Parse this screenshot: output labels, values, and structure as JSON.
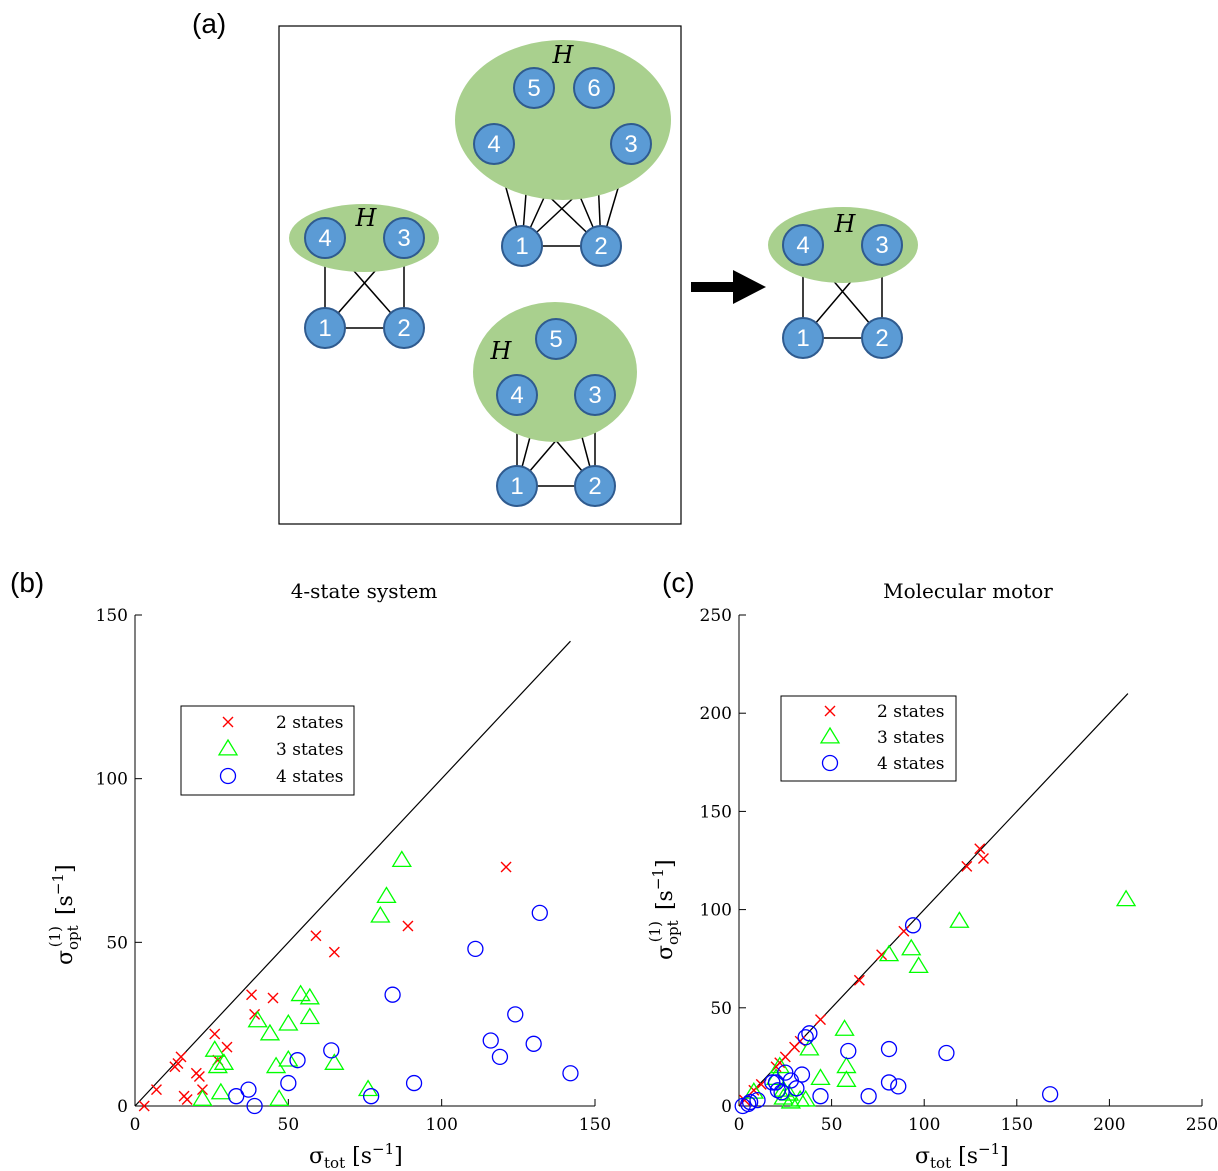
{
  "panel_a": {
    "label": "(a)",
    "group_label": "H",
    "graphs": [
      {
        "nodes": [
          "1",
          "2",
          "3",
          "4"
        ]
      },
      {
        "nodes": [
          "1",
          "2",
          "3",
          "4",
          "5",
          "6"
        ]
      },
      {
        "nodes": [
          "1",
          "2",
          "3",
          "4",
          "5"
        ]
      },
      {
        "nodes": [
          "1",
          "2",
          "3",
          "4"
        ]
      }
    ],
    "colors": {
      "node": "#5b9bd5",
      "node_stroke": "#2f5b8f",
      "group": "#a9d08e"
    }
  },
  "chart_data": [
    {
      "panel_label": "(b)",
      "type": "scatter",
      "title": "4-state system",
      "xlabel": "σ_tot [s^-1]",
      "ylabel": "σ_opt^(1) [s^-1]",
      "xlim": [
        0,
        150
      ],
      "ylim": [
        0,
        150
      ],
      "xticks": [
        "0",
        "50",
        "100",
        "150"
      ],
      "yticks": [
        "0",
        "50",
        "100",
        "150"
      ],
      "reference_line": {
        "from": [
          0,
          0
        ],
        "to": [
          142,
          142
        ]
      },
      "legend_position": "upper-left",
      "series": [
        {
          "name": "2 states",
          "marker": "x",
          "color": "#ff0000",
          "points": [
            [
              3,
              0
            ],
            [
              7,
              5
            ],
            [
              13,
              12
            ],
            [
              14,
              13
            ],
            [
              15,
              15
            ],
            [
              16,
              3
            ],
            [
              17,
              2
            ],
            [
              20,
              10
            ],
            [
              21,
              9
            ],
            [
              22,
              5
            ],
            [
              26,
              22
            ],
            [
              27,
              14
            ],
            [
              30,
              18
            ],
            [
              38,
              34
            ],
            [
              39,
              28
            ],
            [
              45,
              33
            ],
            [
              59,
              52
            ],
            [
              65,
              47
            ],
            [
              89,
              55
            ],
            [
              121,
              73
            ]
          ]
        },
        {
          "name": "3 states",
          "marker": "triangle",
          "color": "#00ff00",
          "points": [
            [
              22,
              2
            ],
            [
              26,
              17
            ],
            [
              27,
              12
            ],
            [
              28,
              4
            ],
            [
              29,
              13
            ],
            [
              40,
              26
            ],
            [
              44,
              22
            ],
            [
              46,
              12
            ],
            [
              47,
              2
            ],
            [
              50,
              25
            ],
            [
              50,
              14
            ],
            [
              54,
              34
            ],
            [
              57,
              33
            ],
            [
              57,
              27
            ],
            [
              65,
              13
            ],
            [
              76,
              5
            ],
            [
              80,
              58
            ],
            [
              82,
              64
            ],
            [
              87,
              75
            ]
          ]
        },
        {
          "name": "4 states",
          "marker": "circle",
          "color": "#0000ff",
          "points": [
            [
              33,
              3
            ],
            [
              37,
              5
            ],
            [
              39,
              0
            ],
            [
              50,
              7
            ],
            [
              53,
              14
            ],
            [
              64,
              17
            ],
            [
              77,
              3
            ],
            [
              84,
              34
            ],
            [
              91,
              7
            ],
            [
              111,
              48
            ],
            [
              116,
              20
            ],
            [
              119,
              15
            ],
            [
              124,
              28
            ],
            [
              130,
              19
            ],
            [
              132,
              59
            ],
            [
              142,
              10
            ]
          ]
        }
      ]
    },
    {
      "panel_label": "(c)",
      "type": "scatter",
      "title": "Molecular motor",
      "xlabel": "σ_tot [s^-1]",
      "ylabel": "σ_opt^(1) [s^-1]",
      "xlim": [
        0,
        250
      ],
      "ylim": [
        0,
        250
      ],
      "xticks": [
        "0",
        "50",
        "100",
        "150",
        "200",
        "250"
      ],
      "yticks": [
        "0",
        "50",
        "100",
        "150",
        "200",
        "250"
      ],
      "reference_line": {
        "from": [
          0,
          0
        ],
        "to": [
          210,
          210
        ]
      },
      "legend_position": "upper-left",
      "series": [
        {
          "name": "2 states",
          "marker": "x",
          "color": "#ff0000",
          "points": [
            [
              3,
              3
            ],
            [
              8,
              8
            ],
            [
              12,
              11
            ],
            [
              20,
              20
            ],
            [
              22,
              22
            ],
            [
              25,
              25
            ],
            [
              30,
              30
            ],
            [
              33,
              33
            ],
            [
              44,
              44
            ],
            [
              65,
              64
            ],
            [
              77,
              77
            ],
            [
              89,
              89
            ],
            [
              123,
              122
            ],
            [
              130,
              131
            ],
            [
              132,
              126
            ]
          ]
        },
        {
          "name": "3 states",
          "marker": "triangle",
          "color": "#00ff00",
          "points": [
            [
              8,
              7
            ],
            [
              20,
              14
            ],
            [
              22,
              20
            ],
            [
              24,
              8
            ],
            [
              24,
              4
            ],
            [
              27,
              6
            ],
            [
              28,
              2
            ],
            [
              33,
              3
            ],
            [
              36,
              3
            ],
            [
              38,
              29
            ],
            [
              44,
              14
            ],
            [
              57,
              39
            ],
            [
              58,
              20
            ],
            [
              58,
              13
            ],
            [
              81,
              77
            ],
            [
              93,
              80
            ],
            [
              97,
              71
            ],
            [
              119,
              94
            ],
            [
              209,
              105
            ]
          ]
        },
        {
          "name": "4 states",
          "marker": "circle",
          "color": "#0000ff",
          "points": [
            [
              2,
              0
            ],
            [
              5,
              1
            ],
            [
              6,
              2
            ],
            [
              10,
              3
            ],
            [
              18,
              12
            ],
            [
              20,
              12
            ],
            [
              21,
              8
            ],
            [
              23,
              7
            ],
            [
              25,
              17
            ],
            [
              28,
              13
            ],
            [
              31,
              9
            ],
            [
              34,
              16
            ],
            [
              36,
              35
            ],
            [
              38,
              37
            ],
            [
              44,
              5
            ],
            [
              59,
              28
            ],
            [
              70,
              5
            ],
            [
              81,
              29
            ],
            [
              81,
              12
            ],
            [
              86,
              10
            ],
            [
              94,
              92
            ],
            [
              112,
              27
            ],
            [
              168,
              6
            ]
          ]
        }
      ]
    }
  ]
}
